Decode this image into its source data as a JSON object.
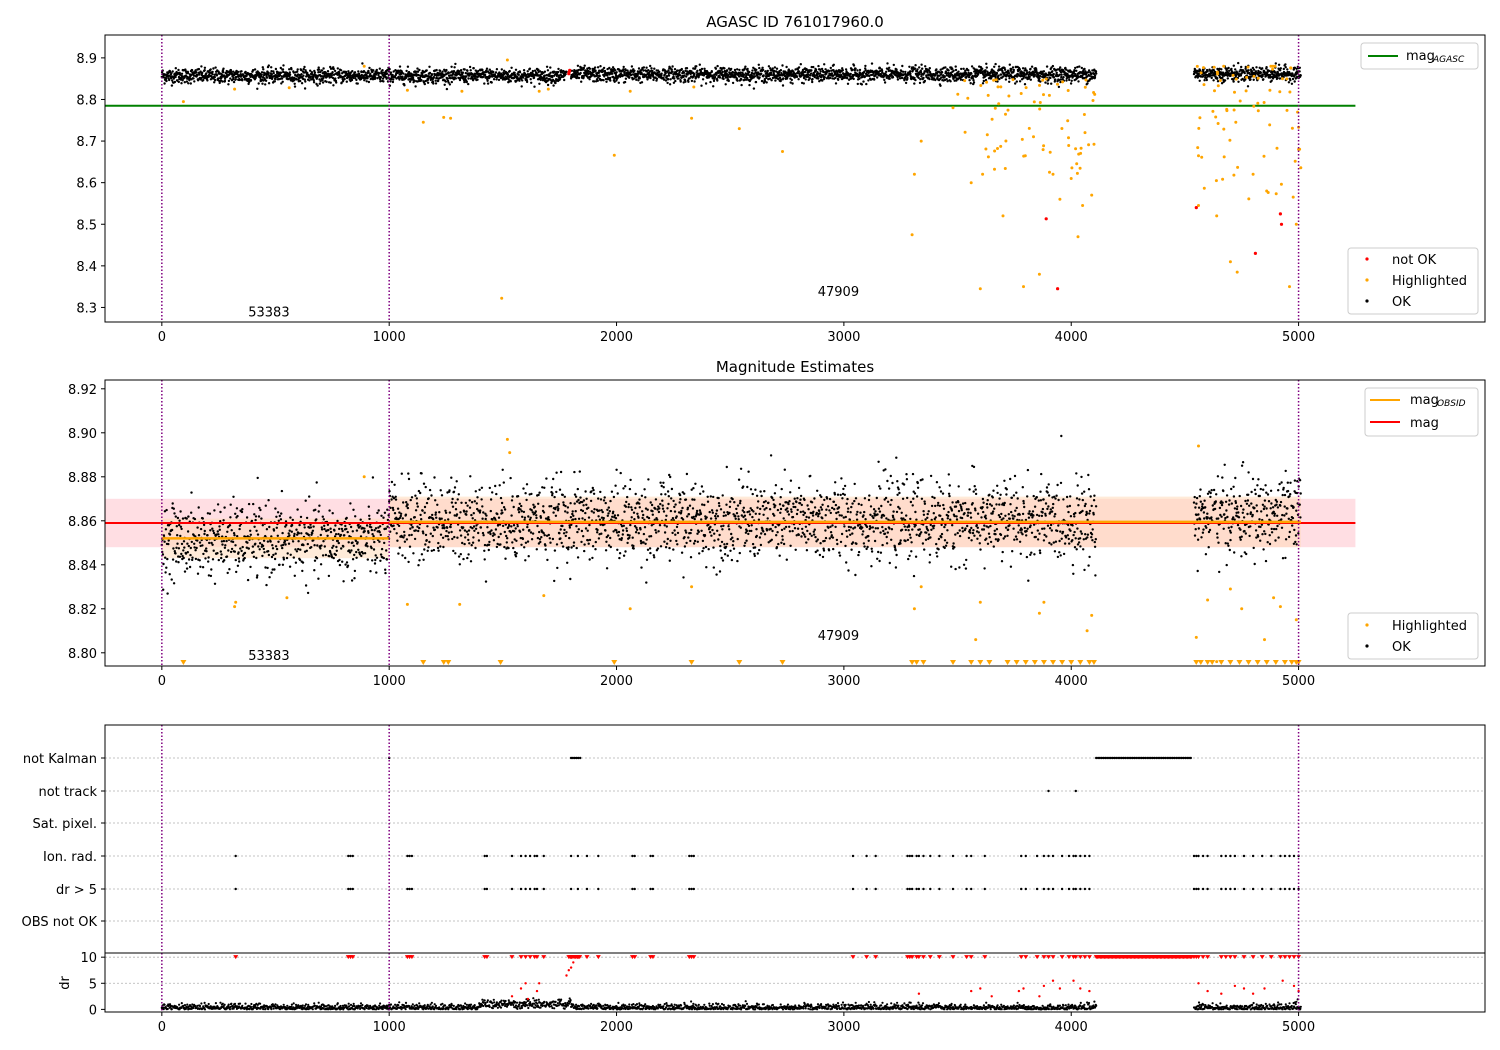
{
  "figure": {
    "colors": {
      "ok": "#000000",
      "highlighted": "#ffa500",
      "not_ok": "#ff0000",
      "mag_agasc": "#008000",
      "mag_obsid": "#ffa500",
      "mag": "#ff0000",
      "band_obsid": "#ffdab9",
      "band_mag": "#ffb6c1",
      "obsid_divider": "#800080",
      "grid": "#b0b0b0"
    }
  },
  "chart_data": [
    {
      "type": "scatter",
      "title": "AGASC ID 761017960.0",
      "xlabel": "",
      "ylabel": "",
      "xlim": [
        -250,
        5820
      ],
      "ylim": [
        8.265,
        8.955
      ],
      "xticks": [
        0,
        1000,
        2000,
        3000,
        4000,
        5000
      ],
      "yticks": [
        8.3,
        8.4,
        8.5,
        8.6,
        8.7,
        8.8,
        8.9
      ],
      "ytick_labels": [
        "8.3",
        "8.4",
        "8.5",
        "8.6",
        "8.7",
        "8.8",
        "8.9"
      ],
      "obsid_boundaries": [
        0,
        1000,
        5000
      ],
      "obsid_labels": [
        {
          "text": "53383",
          "x": 490,
          "y": 8.29
        },
        {
          "text": "47909",
          "x": 2995,
          "y": 8.34
        }
      ],
      "mag_agasc": {
        "label_main": "mag",
        "label_sub": "AGASC",
        "value": 8.785,
        "x_range": [
          -250,
          5250
        ]
      },
      "legend_line": {
        "position": "top-right",
        "entries": [
          "mag_AGASC"
        ]
      },
      "legend_points": {
        "position": "lower-right",
        "entries": [
          "not OK",
          "Highlighted",
          "OK"
        ]
      },
      "series": [
        {
          "name": "OK",
          "band": [
            8.825,
            8.895
          ],
          "segments": [
            [
              0,
              1780,
              8.857
            ],
            [
              1800,
              4110,
              8.86
            ],
            [
              4540,
              5010,
              8.862
            ]
          ]
        },
        {
          "name": "Highlighted",
          "points": [
            [
              95,
              8.795
            ],
            [
              320,
              8.825
            ],
            [
              560,
              8.828
            ],
            [
              890,
              8.88
            ],
            [
              1080,
              8.822
            ],
            [
              1150,
              8.745
            ],
            [
              1240,
              8.757
            ],
            [
              1270,
              8.755
            ],
            [
              1320,
              8.82
            ],
            [
              1495,
              8.322
            ],
            [
              1520,
              8.895
            ],
            [
              1660,
              8.82
            ],
            [
              1700,
              8.825
            ],
            [
              1990,
              8.666
            ],
            [
              2060,
              8.82
            ],
            [
              2330,
              8.755
            ],
            [
              2340,
              8.83
            ],
            [
              2540,
              8.73
            ],
            [
              2730,
              8.675
            ],
            [
              3300,
              8.475
            ],
            [
              3310,
              8.62
            ],
            [
              3340,
              8.7
            ],
            [
              3480,
              8.78
            ],
            [
              3560,
              8.6
            ],
            [
              3600,
              8.345
            ],
            [
              3610,
              8.62
            ],
            [
              3700,
              8.52
            ],
            [
              3790,
              8.35
            ],
            [
              3860,
              8.38
            ],
            [
              3920,
              8.62
            ],
            [
              3950,
              8.56
            ],
            [
              4000,
              8.61
            ],
            [
              4030,
              8.47
            ],
            [
              4050,
              8.545
            ],
            [
              4090,
              8.57
            ],
            [
              4560,
              8.545
            ],
            [
              4640,
              8.52
            ],
            [
              4700,
              8.41
            ],
            [
              4730,
              8.385
            ],
            [
              4800,
              8.62
            ],
            [
              4860,
              8.58
            ],
            [
              4960,
              8.35
            ],
            [
              4990,
              8.5
            ],
            [
              5000,
              8.68
            ]
          ],
          "extra_clusters": [
            [
              3500,
              4110,
              8.62,
              8.85,
              70
            ],
            [
              4540,
              5010,
              8.55,
              8.88,
              70
            ]
          ]
        },
        {
          "name": "not OK",
          "points": [
            [
              1790,
              8.862
            ],
            [
              1792,
              8.866
            ],
            [
              1794,
              8.87
            ],
            [
              3890,
              8.513
            ],
            [
              3940,
              8.345
            ],
            [
              4550,
              8.54
            ],
            [
              4810,
              8.43
            ],
            [
              4920,
              8.525
            ],
            [
              4925,
              8.5
            ]
          ]
        }
      ]
    },
    {
      "type": "scatter",
      "title": "Magnitude Estimates",
      "xlabel": "",
      "ylabel": "",
      "xlim": [
        -250,
        5820
      ],
      "ylim": [
        8.794,
        8.924
      ],
      "xticks": [
        0,
        1000,
        2000,
        3000,
        4000,
        5000
      ],
      "yticks": [
        8.8,
        8.82,
        8.84,
        8.86,
        8.88,
        8.9,
        8.92
      ],
      "ytick_labels": [
        "8.80",
        "8.82",
        "8.84",
        "8.86",
        "8.88",
        "8.90",
        "8.92"
      ],
      "obsid_boundaries": [
        0,
        1000,
        5000
      ],
      "obsid_labels": [
        {
          "text": "53383",
          "x": 490,
          "y": 8.799
        },
        {
          "text": "47909",
          "x": 2995,
          "y": 8.808
        }
      ],
      "mag_obsid": {
        "label_main": "mag",
        "label_sub": "OBSID",
        "segments": [
          [
            0,
            1000,
            8.852
          ],
          [
            1000,
            5010,
            8.8595
          ]
        ],
        "band": [
          [
            0,
            1000,
            8.843,
            8.861
          ],
          [
            1000,
            5010,
            8.848,
            8.871
          ]
        ]
      },
      "mag": {
        "label": "mag",
        "value": 8.859,
        "band": [
          8.848,
          8.87
        ],
        "x_range": [
          -250,
          5250
        ]
      },
      "legend_line": {
        "position": "top-right",
        "entries": [
          "mag_OBSID",
          "mag"
        ]
      },
      "legend_points": {
        "position": "lower-right",
        "entries": [
          "Highlighted",
          "OK"
        ]
      },
      "series": [
        {
          "name": "OK",
          "segments": [
            [
              0,
              1000,
              8.851,
              0.008
            ],
            [
              1000,
              4110,
              8.86,
              0.009
            ],
            [
              4540,
              5010,
              8.862,
              0.009
            ]
          ]
        },
        {
          "name": "Highlighted",
          "points": [
            [
              320,
              8.821
            ],
            [
              325,
              8.823
            ],
            [
              550,
              8.825
            ],
            [
              890,
              8.88
            ],
            [
              1080,
              8.822
            ],
            [
              1310,
              8.822
            ],
            [
              1520,
              8.897
            ],
            [
              1530,
              8.891
            ],
            [
              1680,
              8.826
            ],
            [
              2060,
              8.82
            ],
            [
              2330,
              8.83
            ],
            [
              3310,
              8.82
            ],
            [
              3340,
              8.83
            ],
            [
              3580,
              8.806
            ],
            [
              3600,
              8.823
            ],
            [
              3860,
              8.818
            ],
            [
              3880,
              8.823
            ],
            [
              4070,
              8.81
            ],
            [
              4090,
              8.817
            ],
            [
              4550,
              8.807
            ],
            [
              4560,
              8.894
            ],
            [
              4600,
              8.824
            ],
            [
              4640,
              8.796
            ],
            [
              4700,
              8.829
            ],
            [
              4750,
              8.82
            ],
            [
              4850,
              8.806
            ],
            [
              4890,
              8.825
            ],
            [
              4920,
              8.821
            ],
            [
              4990,
              8.815
            ]
          ],
          "clipped_x": [
            95,
            1150,
            1240,
            1260,
            1490,
            1990,
            2330,
            2540,
            2730,
            3300,
            3320,
            3350,
            3480,
            3560,
            3600,
            3640,
            3720,
            3760,
            3800,
            3840,
            3880,
            3920,
            3960,
            4000,
            4040,
            4080,
            4100,
            4550,
            4570,
            4600,
            4620,
            4660,
            4700,
            4740,
            4780,
            4820,
            4860,
            4900,
            4940,
            4970,
            4990,
            5000
          ]
        }
      ]
    },
    {
      "type": "scatter",
      "title": "",
      "xlabel": "",
      "ylabel": "",
      "xlim": [
        -250,
        5820
      ],
      "xticks": [],
      "obsid_boundaries": [
        0,
        1000,
        5000
      ],
      "categories": [
        "not Kalman",
        "not track",
        "Sat. pixel.",
        "Ion. rad.",
        "dr > 5",
        "OBS not OK"
      ],
      "flags": {
        "not Kalman": [
          [
            1800,
            1840
          ],
          [
            4110,
            4530
          ],
          [
            1000,
            1000
          ]
        ],
        "not track": [
          3900,
          4020
        ],
        "Sat. pixel.": [],
        "Ion. rad.": [
          325,
          820,
          830,
          840,
          1080,
          1090,
          1100,
          1420,
          1430,
          1540,
          1580,
          1600,
          1620,
          1640,
          1650,
          1680,
          1800,
          1830,
          1870,
          1920,
          2070,
          2080,
          2150,
          2160,
          2320,
          2330,
          2340,
          3040,
          3100,
          3140,
          3280,
          3290,
          3300,
          3320,
          3330,
          3350,
          3380,
          3420,
          3480,
          3540,
          3560,
          3620,
          3780,
          3800,
          3850,
          3880,
          3900,
          3920,
          3960,
          3990,
          4010,
          4020,
          4040,
          4060,
          4080,
          4540,
          4550,
          4560,
          4580,
          4600,
          4660,
          4680,
          4700,
          4720,
          4760,
          4800,
          4840,
          4880,
          4920,
          4940,
          4960,
          4980,
          5000
        ],
        "dr > 5": [
          325,
          820,
          830,
          840,
          1080,
          1090,
          1100,
          1420,
          1430,
          1540,
          1580,
          1600,
          1620,
          1640,
          1650,
          1680,
          1800,
          1830,
          1870,
          1920,
          2070,
          2080,
          2150,
          2160,
          2320,
          2330,
          2340,
          3040,
          3100,
          3140,
          3280,
          3290,
          3300,
          3320,
          3330,
          3350,
          3380,
          3420,
          3480,
          3540,
          3560,
          3620,
          3780,
          3800,
          3850,
          3880,
          3900,
          3920,
          3960,
          3990,
          4010,
          4020,
          4040,
          4060,
          4080,
          4540,
          4550,
          4560,
          4580,
          4600,
          4660,
          4680,
          4700,
          4720,
          4760,
          4800,
          4840,
          4880,
          4920,
          4940,
          4960,
          4980,
          5000
        ],
        "OBS not OK": []
      }
    },
    {
      "type": "scatter",
      "title": "",
      "xlabel": "",
      "ylabel": "dr",
      "xlim": [
        -250,
        5820
      ],
      "ylim": [
        -0.5,
        10.8
      ],
      "xticks": [
        0,
        1000,
        2000,
        3000,
        4000,
        5000
      ],
      "yticks": [
        0,
        5,
        10
      ],
      "ytick_labels": [
        "0",
        "5",
        "10"
      ],
      "obsid_boundaries": [
        0,
        1000,
        5000
      ],
      "series": [
        {
          "name": "dr",
          "segments": [
            [
              0,
              4110
            ],
            [
              4540,
              5010
            ]
          ],
          "clipped_at": 10
        },
        {
          "name": "dr > 5",
          "color": "#ff0000",
          "points": [
            [
              1540,
              2.5
            ],
            [
              1580,
              4
            ],
            [
              1600,
              5
            ],
            [
              1610,
              2
            ],
            [
              1650,
              3.5
            ],
            [
              1660,
              5
            ],
            [
              1780,
              6.5
            ],
            [
              1790,
              7.5
            ],
            [
              1800,
              8
            ],
            [
              1810,
              9
            ],
            [
              3330,
              3
            ],
            [
              3560,
              3.5
            ],
            [
              3600,
              4
            ],
            [
              3650,
              2.5
            ],
            [
              3770,
              3.5
            ],
            [
              3790,
              4
            ],
            [
              3860,
              2.5
            ],
            [
              3880,
              4.5
            ],
            [
              3920,
              5.5
            ],
            [
              3950,
              4
            ],
            [
              4010,
              5.5
            ],
            [
              4040,
              4
            ],
            [
              4080,
              3.5
            ],
            [
              4560,
              5
            ],
            [
              4600,
              3.5
            ],
            [
              4660,
              3
            ],
            [
              4720,
              4.5
            ],
            [
              4760,
              4
            ],
            [
              4800,
              3
            ],
            [
              4850,
              4
            ],
            [
              4930,
              5.5
            ],
            [
              4980,
              4.5
            ],
            [
              5000,
              3.5
            ]
          ]
        }
      ]
    }
  ]
}
